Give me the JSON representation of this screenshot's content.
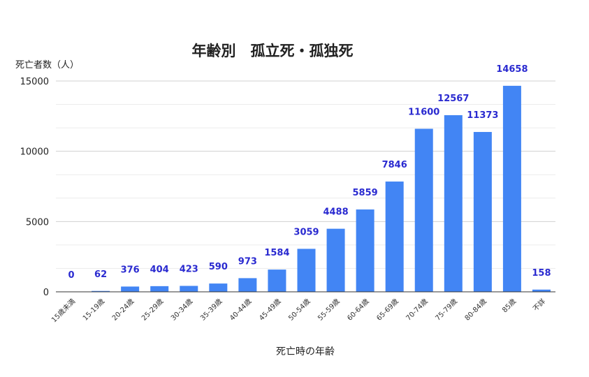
{
  "chart_data": {
    "type": "bar",
    "title": "年齢別　孤立死・孤独死",
    "xlabel": "死亡時の年齢",
    "ylabel": "死亡者数（人）",
    "categories": [
      "15歳未満",
      "15-19歳",
      "20-24歳",
      "25-29歳",
      "30-34歳",
      "35-39歳",
      "40-44歳",
      "45-49歳",
      "50-54歳",
      "55-59歳",
      "60-64歳",
      "65-69歳",
      "70-74歳",
      "75-79歳",
      "80-84歳",
      "85歳",
      "不詳"
    ],
    "values": [
      0,
      62,
      376,
      404,
      423,
      590,
      973,
      1584,
      3059,
      4488,
      5859,
      7846,
      11600,
      12567,
      11373,
      14658,
      158
    ],
    "ylim": [
      0,
      15000
    ],
    "yticks": [
      0,
      5000,
      10000,
      15000
    ],
    "grid": true,
    "bar_color": "#4285f4",
    "label_color": "#2a2ad0"
  }
}
